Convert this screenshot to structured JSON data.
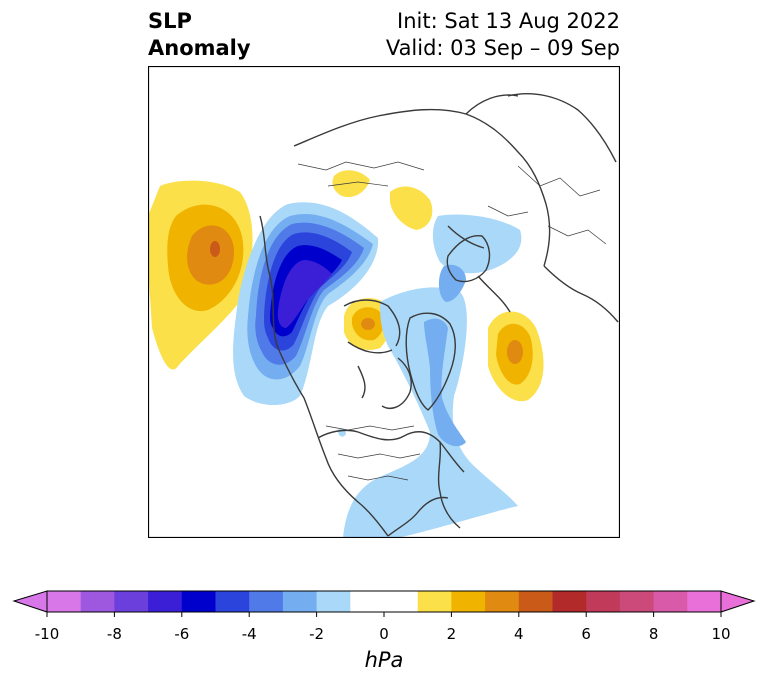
{
  "title": {
    "left_line1": "SLP",
    "left_line2": "Anomaly",
    "right_line1": "Init: Sat 13 Aug 2022",
    "right_line2": "Valid: 03 Sep – 09 Sep"
  },
  "colorbar": {
    "unit": "hPa",
    "ticks": [
      "-10",
      "-8",
      "-6",
      "-4",
      "-2",
      "0",
      "2",
      "4",
      "6",
      "8",
      "10"
    ],
    "range": [
      -10,
      10
    ],
    "step": 1,
    "extend": "both",
    "colors": [
      "#d777e8",
      "#9e58e0",
      "#6a3fdc",
      "#3b1fd6",
      "#0000cc",
      "#2b44dc",
      "#4f7ae8",
      "#75aef0",
      "#a9d8f8",
      "#ffffff",
      "#ffffff",
      "#fbe04a",
      "#f0b400",
      "#e08a12",
      "#c95a18",
      "#b22a2a",
      "#c23a5a",
      "#cc4a7a",
      "#d85aa8",
      "#e870d8"
    ],
    "extend_low_color": "#d777e8",
    "extend_high_color": "#e870d8"
  },
  "map": {
    "projection": "polar-stereographic",
    "coastline_color": "#333333",
    "anomalies": [
      {
        "region": "North Pacific",
        "sign": "positive",
        "peak_hPa": 5
      },
      {
        "region": "Alaska / Bering",
        "sign": "negative",
        "peak_hPa": -6
      },
      {
        "region": "Canadian Arctic Archipelago",
        "sign": "positive",
        "peak_hPa": 4
      },
      {
        "region": "Northeast Atlantic",
        "sign": "positive",
        "peak_hPa": 4
      },
      {
        "region": "Eastern North America / North Atlantic",
        "sign": "negative",
        "peak_hPa": -2
      },
      {
        "region": "Northern Siberia",
        "sign": "positive",
        "peak_hPa": 2
      }
    ]
  }
}
